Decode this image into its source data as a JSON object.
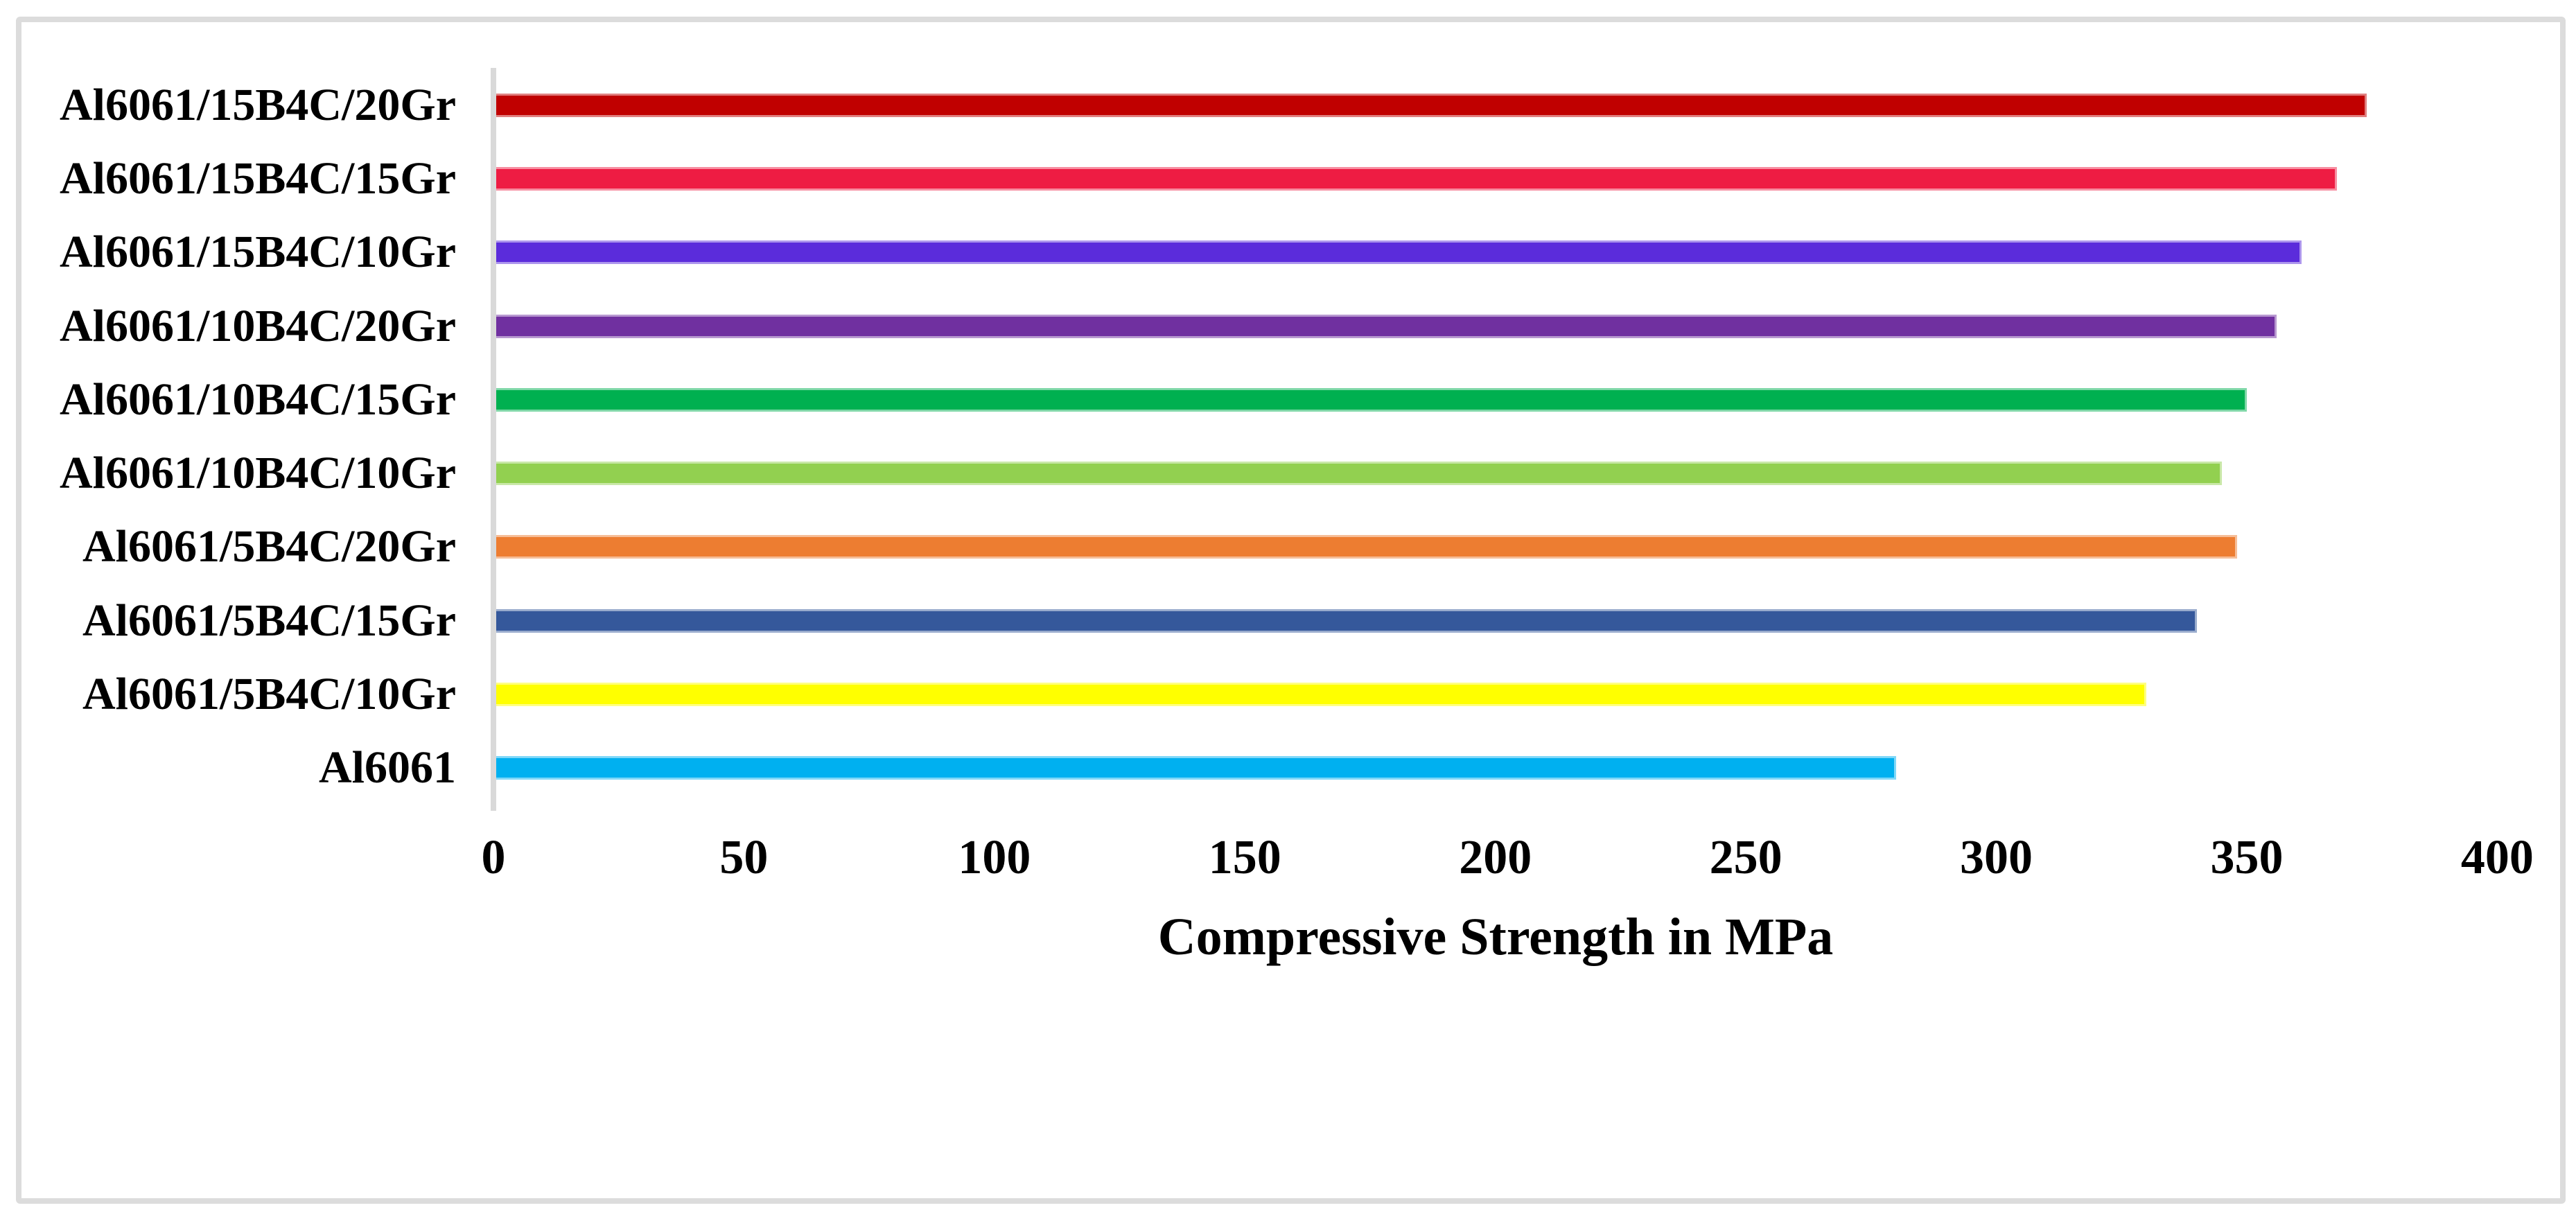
{
  "chart_data": {
    "type": "bar",
    "orientation": "horizontal",
    "title": "",
    "xlabel": "Compressive Strength in MPa",
    "ylabel": "",
    "xlim": [
      0,
      400
    ],
    "xticks": [
      0,
      50,
      100,
      150,
      200,
      250,
      300,
      350,
      400
    ],
    "grid": false,
    "legend": false,
    "categories": [
      "Al6061/15B4C/20Gr",
      "Al6061/15B4C/15Gr",
      "Al6061/15B4C/10Gr",
      "Al6061/10B4C/20Gr",
      "Al6061/10B4C/15Gr",
      "Al6061/10B4C/10Gr",
      "Al6061/5B4C/20Gr",
      "Al6061/5B4C/15Gr",
      "Al6061/5B4C/10Gr",
      "Al6061"
    ],
    "values": [
      374,
      368,
      361,
      356,
      350,
      345,
      348,
      340,
      330,
      280
    ],
    "unit": "MPa",
    "bar_colors": [
      "#C00000",
      "#EE1C43",
      "#5B2CDB",
      "#7030A0",
      "#00B050",
      "#92D050",
      "#ED7D31",
      "#35589B",
      "#FFFF00",
      "#00B0F0"
    ]
  },
  "style_colors": {
    "frame_border": "#DCDCDC",
    "axis_line": "#D9D9D9",
    "text": "#000000",
    "background": "#FFFFFF"
  }
}
